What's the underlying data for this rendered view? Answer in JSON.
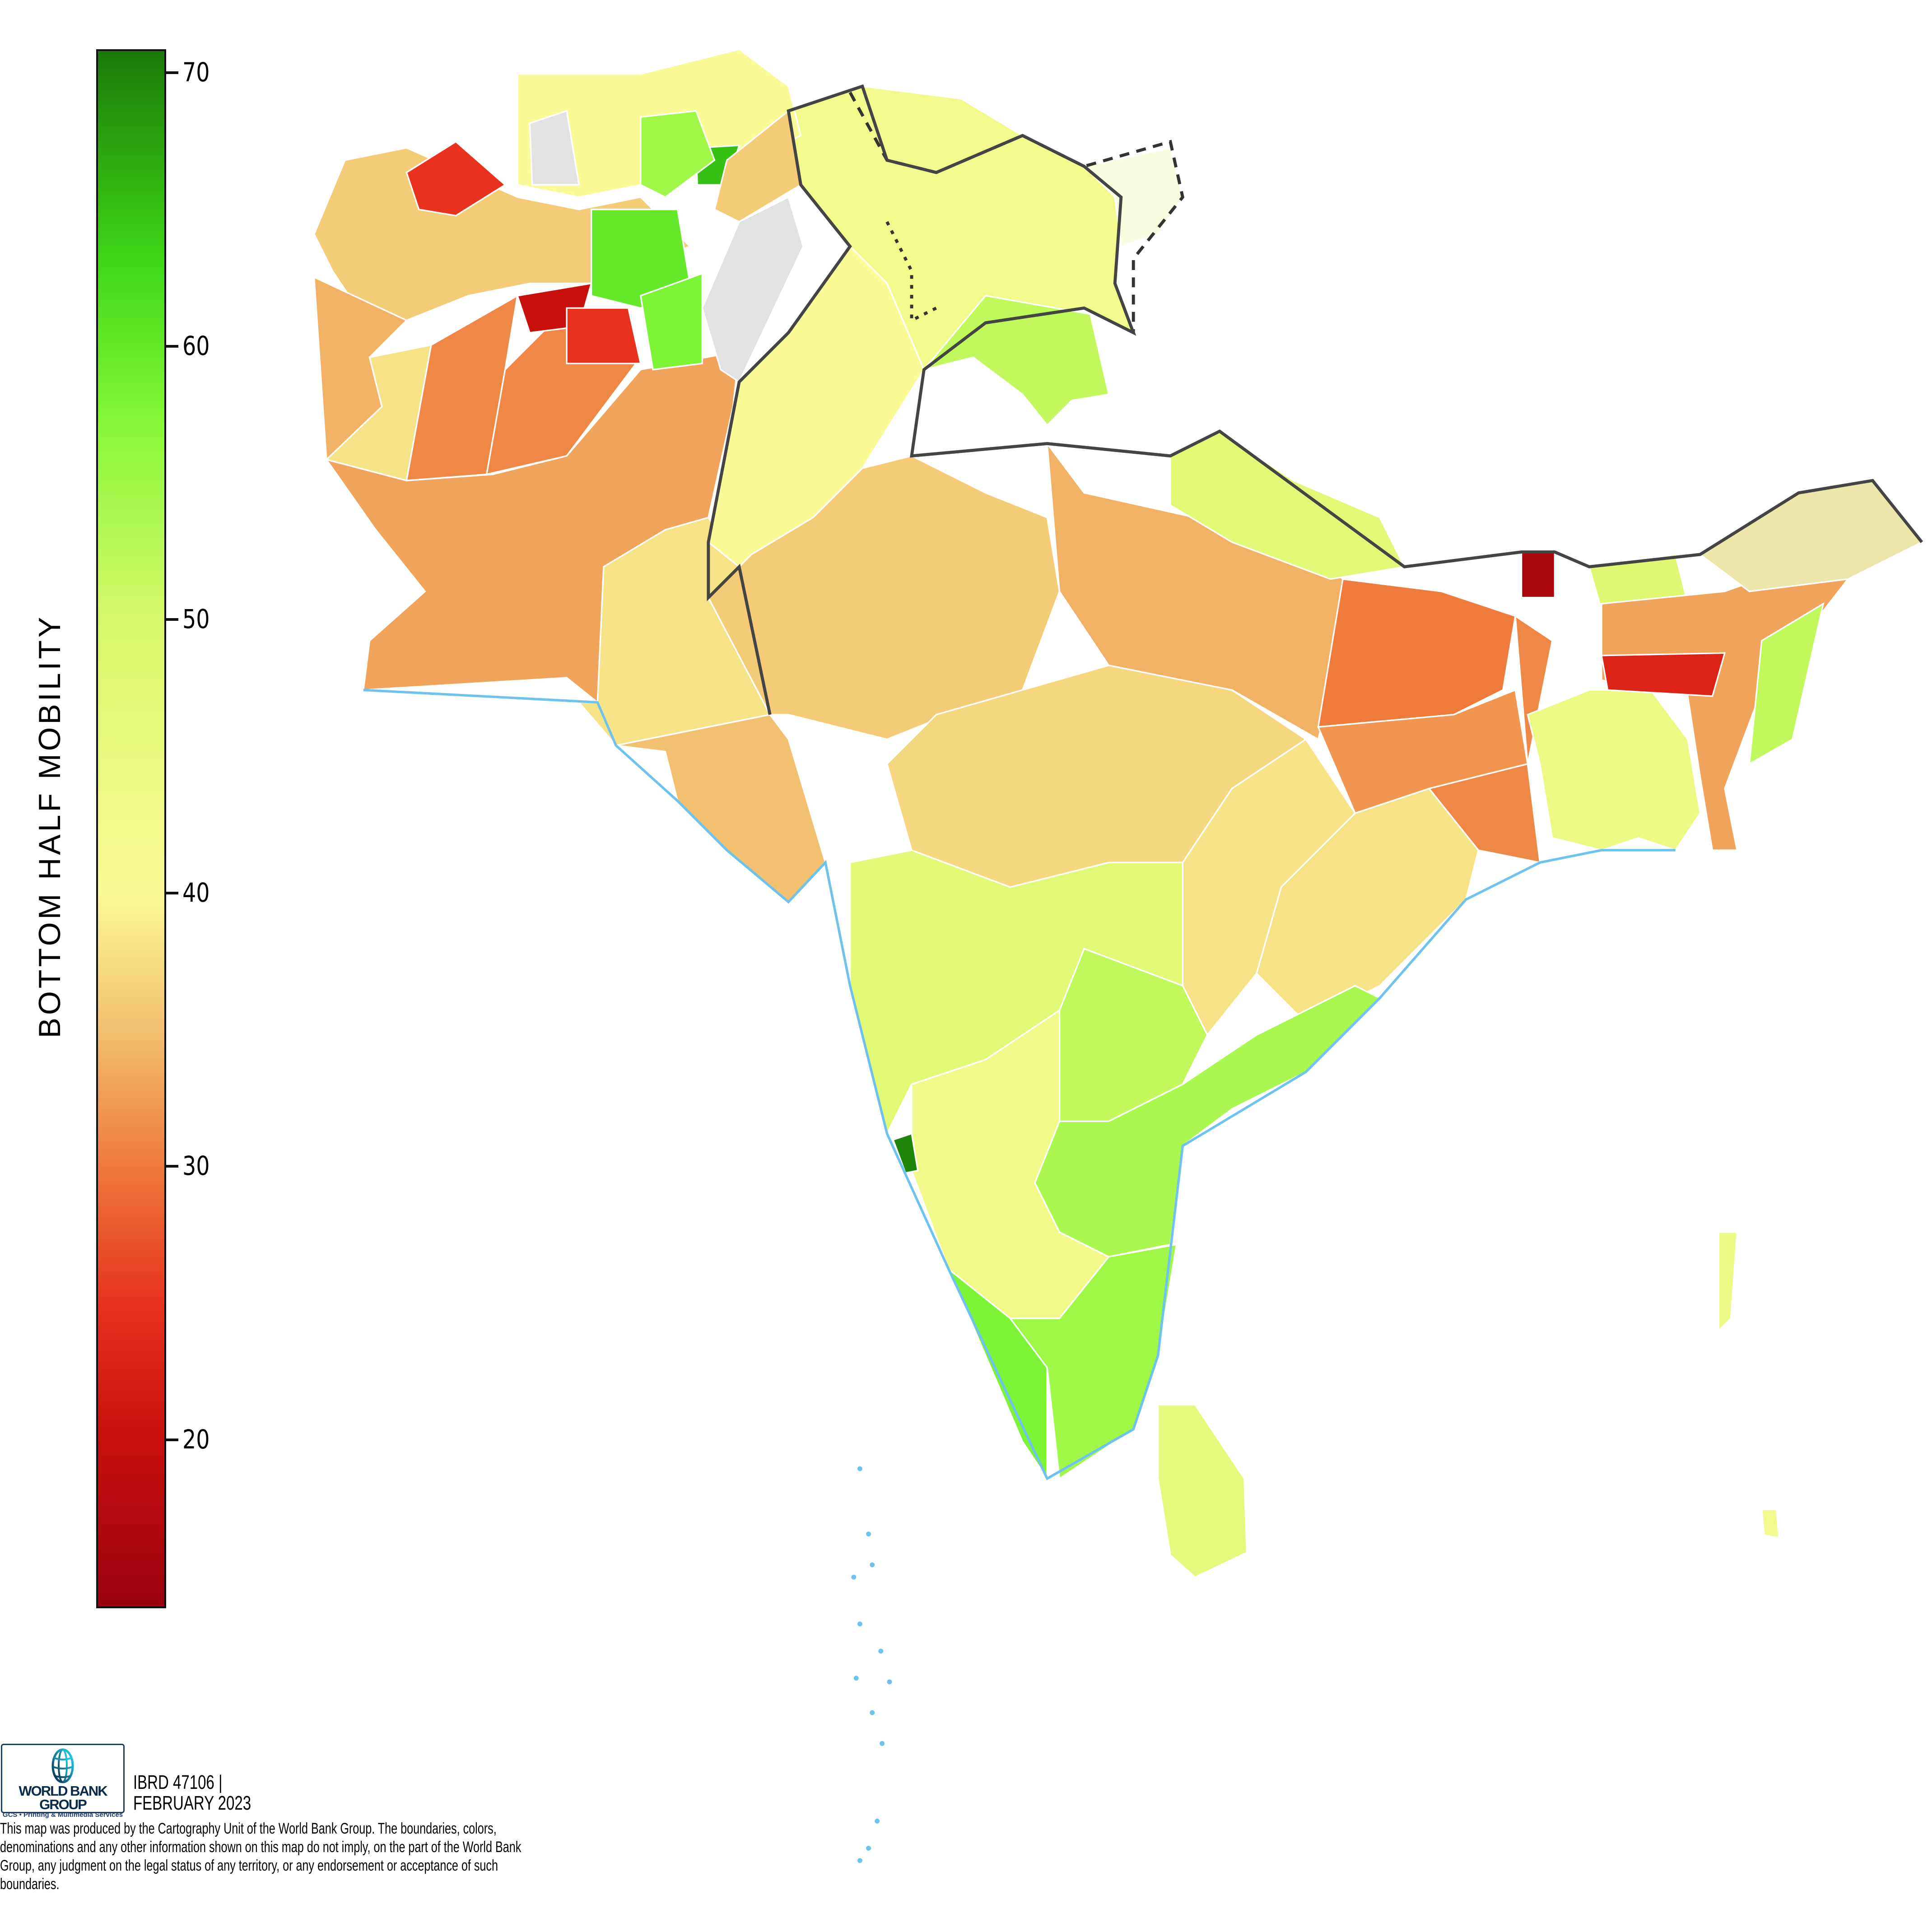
{
  "chart_data": {
    "type": "choropleth",
    "colorbar": {
      "title": "BOTTOM HALF MOBILITY",
      "range": [
        13.9,
        70.8
      ],
      "ticks": [
        70,
        60,
        50,
        40,
        30,
        20
      ],
      "tick_labels": [
        "70",
        "60",
        "50",
        "40",
        "30",
        "20"
      ],
      "color_stops": [
        {
          "value": 13.9,
          "color": "#9b0010"
        },
        {
          "value": 20,
          "color": "#c8100c"
        },
        {
          "value": 25,
          "color": "#e8321e"
        },
        {
          "value": 30,
          "color": "#ee7a3c"
        },
        {
          "value": 35,
          "color": "#f2c070"
        },
        {
          "value": 40,
          "color": "#fafa96"
        },
        {
          "value": 50,
          "color": "#d8f86a"
        },
        {
          "value": 57,
          "color": "#88f83a"
        },
        {
          "value": 63,
          "color": "#40d818"
        },
        {
          "value": 70.8,
          "color": "#1a7a08"
        }
      ]
    },
    "region_values": [
      33,
      38,
      40,
      42,
      52,
      36,
      35,
      37,
      34,
      30,
      32,
      31,
      38,
      38,
      47,
      52,
      54,
      43,
      70,
      58,
      55,
      46,
      47,
      44,
      48,
      33,
      52,
      16,
      23,
      36,
      25,
      34,
      38,
      31,
      31,
      20,
      25,
      40,
      60,
      58,
      65,
      55,
      36,
      44,
      42
    ],
    "no_data_color": "#e2e2e2",
    "disputed_color": "#ece6aa",
    "coast_color": "#6ec3ee"
  },
  "footer": {
    "logo_name": "WORLD BANK GROUP",
    "logo_sub": "GCS • Printing & Multimedia Services",
    "ibrd": "IBRD 47106 |",
    "date": "FEBRUARY 2023",
    "disclaimer": "This map was produced by the Cartography Unit of the World Bank Group. The boundaries, colors, denominations and any other information shown on this map do not imply, on the part of the World Bank Group, any judgment on the legal status of any territory, or any endorsement or acceptance of such boundaries."
  }
}
